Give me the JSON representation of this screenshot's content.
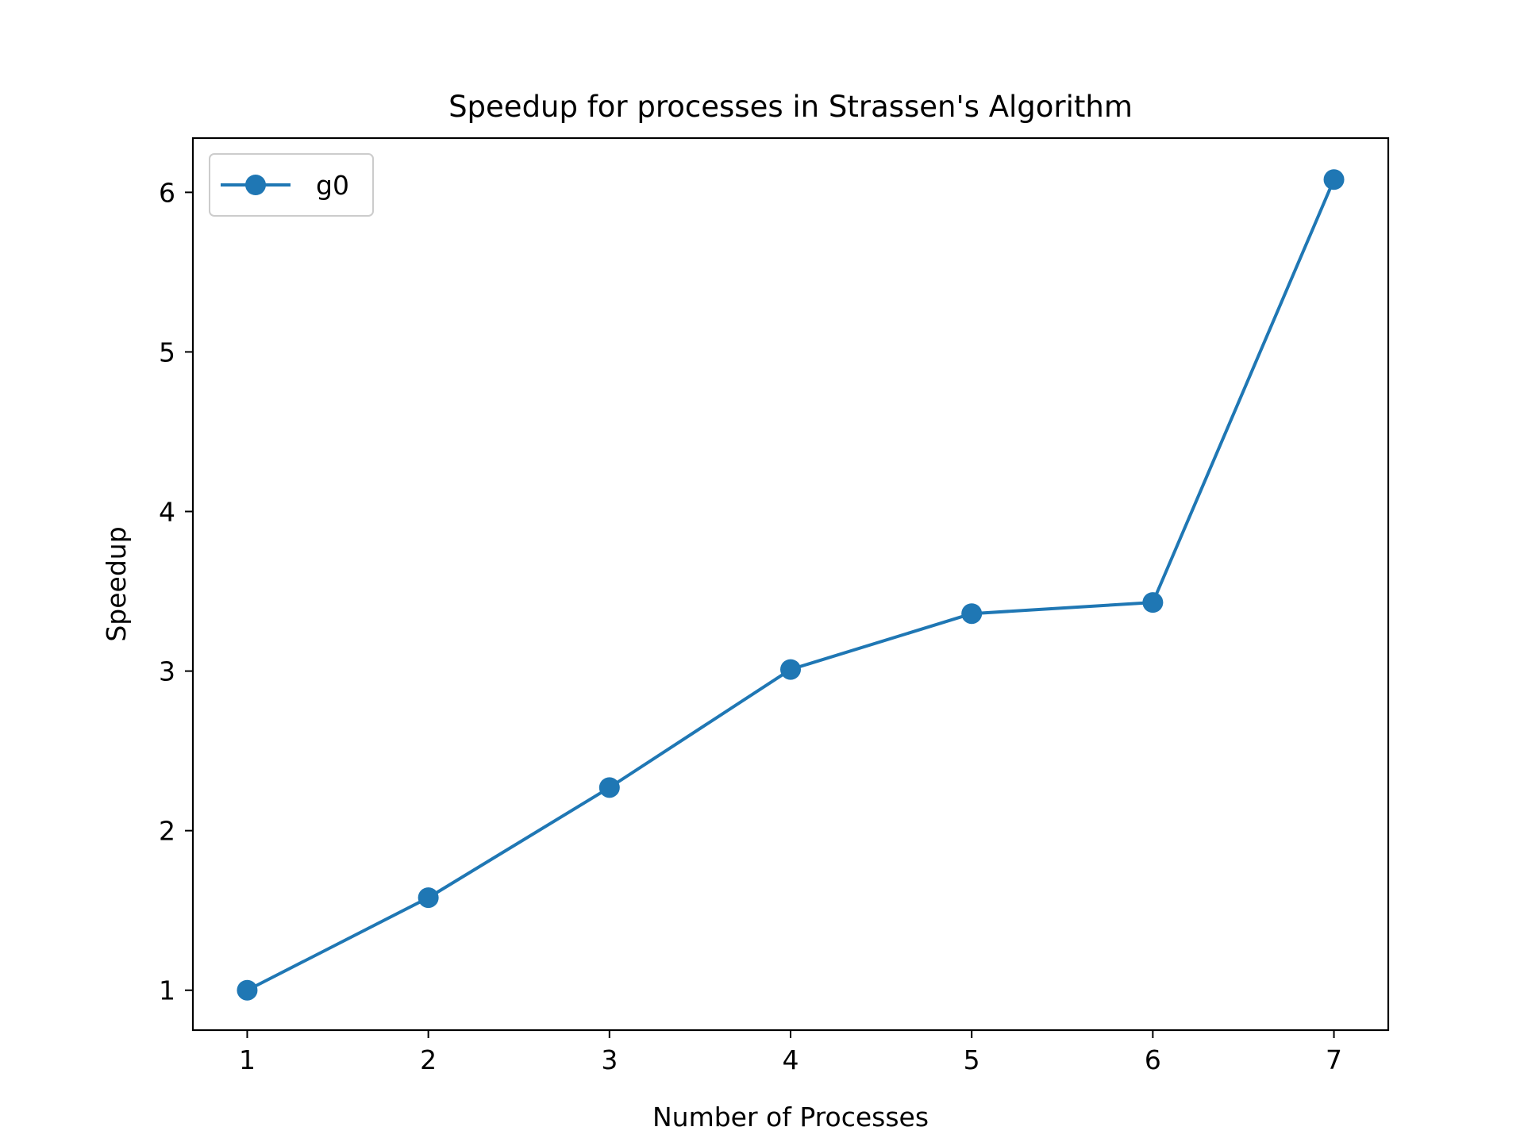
{
  "chart_data": {
    "type": "line",
    "title": "Speedup for processes in Strassen's Algorithm",
    "xlabel": "Number of Processes",
    "ylabel": "Speedup",
    "x": [
      1,
      2,
      3,
      4,
      5,
      6,
      7
    ],
    "series": [
      {
        "name": "g0",
        "values": [
          1.0,
          1.58,
          2.27,
          3.01,
          3.36,
          3.43,
          6.08
        ],
        "color": "#1f77b4",
        "marker": "circle"
      }
    ],
    "xticks": [
      1,
      2,
      3,
      4,
      5,
      6,
      7
    ],
    "yticks": [
      1,
      2,
      3,
      4,
      5,
      6
    ],
    "xlim": [
      0.7,
      7.3
    ],
    "ylim": [
      0.75,
      6.34
    ],
    "grid": false,
    "legend_position": "top-left"
  }
}
